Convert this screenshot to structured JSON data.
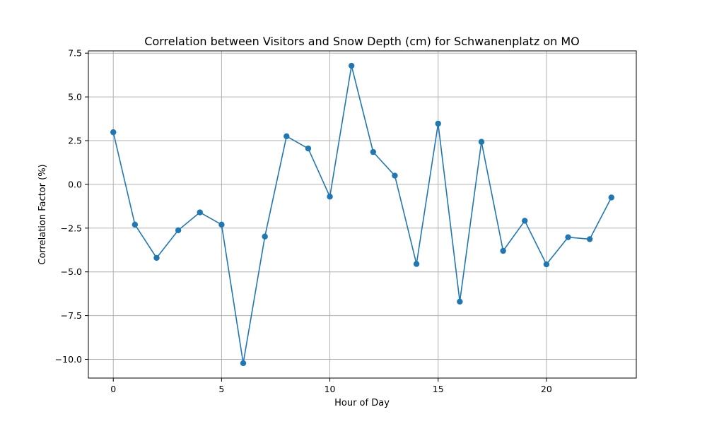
{
  "chart_data": {
    "type": "line",
    "title": "Correlation between Visitors and Snow Depth (cm) for Schwanenplatz on MO",
    "xlabel": "Hour of Day",
    "ylabel": "Correlation Factor (%)",
    "x": [
      0,
      1,
      2,
      3,
      4,
      5,
      6,
      7,
      8,
      9,
      10,
      11,
      12,
      13,
      14,
      15,
      16,
      17,
      18,
      19,
      20,
      21,
      22,
      23
    ],
    "series": [
      {
        "values": [
          2.98,
          -2.3,
          -4.2,
          -2.62,
          -1.6,
          -2.3,
          -10.22,
          -2.98,
          2.75,
          2.05,
          -0.7,
          6.78,
          1.85,
          0.5,
          -4.55,
          3.47,
          -6.7,
          2.43,
          -3.8,
          -2.08,
          -4.57,
          -3.02,
          -3.13,
          -0.75
        ],
        "color": "#1f77b4",
        "marker": "circle"
      }
    ],
    "xlim": [
      -1.15,
      24.15
    ],
    "ylim": [
      -11.07,
      7.63
    ],
    "xticks": [
      0,
      5,
      10,
      15,
      20
    ],
    "yticks": [
      -10.0,
      -7.5,
      -5.0,
      -2.5,
      0.0,
      2.5,
      5.0,
      7.5
    ],
    "xtick_labels": [
      "0",
      "5",
      "10",
      "15",
      "20"
    ],
    "ytick_labels": [
      "−10.0",
      "−7.5",
      "−5.0",
      "−2.5",
      "0.0",
      "2.5",
      "5.0",
      "7.5"
    ],
    "grid": true,
    "legend": "none"
  }
}
